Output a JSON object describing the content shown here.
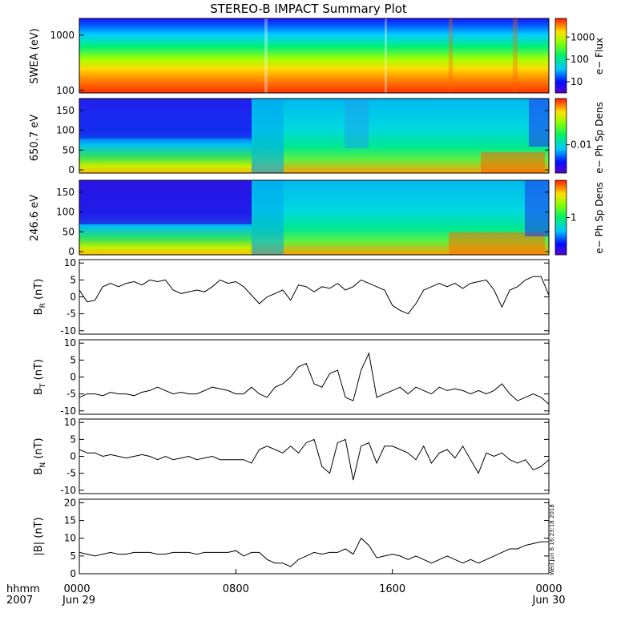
{
  "title": "STEREO-B IMPACT Summary Plot",
  "footer": {
    "hhmm": "hhmm",
    "year": "2007",
    "x_ticks": [
      "0000",
      "0800",
      "1600",
      "0000"
    ],
    "date_start": "Jun 29",
    "date_end": "Jun 30",
    "stamp": "Wed Jun  6 16:23:18 2018"
  },
  "chart_data": [
    {
      "type": "heatmap",
      "ylabel": "SWEA (eV)",
      "yscale": "log",
      "ylim": [
        90,
        2000
      ],
      "yticks": [
        "1000",
        "100"
      ],
      "colorbar": {
        "label": "e− Flux",
        "scale": "log",
        "ticks": [
          "1000",
          "100",
          "10"
        ]
      }
    },
    {
      "type": "heatmap",
      "ylabel": "650.7 eV",
      "ylim": [
        -8,
        180
      ],
      "yticks": [
        "150",
        "100",
        "50",
        "0"
      ],
      "colorbar": {
        "label": "e− Ph Sp Dens",
        "scale": "log",
        "ticks": [
          "0.01"
        ]
      }
    },
    {
      "type": "heatmap",
      "ylabel": "246.6 eV",
      "ylim": [
        -8,
        180
      ],
      "yticks": [
        "150",
        "100",
        "50",
        "0"
      ],
      "colorbar": {
        "label": "e− Ph Sp Dens",
        "scale": "log",
        "ticks": [
          "1"
        ]
      }
    },
    {
      "type": "line",
      "ylabel_main": "B",
      "ylabel_sub": "R",
      "ylabel_unit": "(nT)",
      "ylim": [
        -11,
        11
      ],
      "yticks": [
        10,
        5,
        0,
        -5,
        -10
      ],
      "x_hours": [
        0,
        0.4,
        0.8,
        1.2,
        1.6,
        2,
        2.4,
        2.8,
        3.2,
        3.6,
        4,
        4.4,
        4.8,
        5.2,
        5.6,
        6,
        6.4,
        6.8,
        7.2,
        7.6,
        8,
        8.4,
        8.8,
        9.2,
        9.6,
        10,
        10.4,
        10.8,
        11.2,
        11.6,
        12,
        12.4,
        12.8,
        13.2,
        13.6,
        14,
        14.4,
        14.8,
        15.2,
        15.6,
        16,
        16.4,
        16.8,
        17.2,
        17.6,
        18,
        18.4,
        18.8,
        19.2,
        19.6,
        20,
        20.4,
        20.8,
        21.2,
        21.6,
        22,
        22.4,
        22.8,
        23.2,
        23.6,
        24
      ],
      "y": [
        2,
        -1.5,
        -1,
        3,
        4,
        3,
        4,
        4.5,
        3.5,
        5,
        4.5,
        5,
        2,
        1,
        1.5,
        2,
        1.5,
        3,
        5,
        4,
        4.5,
        3,
        0.5,
        -2,
        0,
        1,
        2,
        -1,
        3.5,
        3,
        1.5,
        3,
        2.5,
        4,
        2,
        3,
        5,
        4,
        3,
        2,
        -2.5,
        -4,
        -5,
        -2,
        2,
        3,
        4,
        3,
        4,
        2.5,
        4,
        4.5,
        5,
        2,
        -3,
        2,
        3,
        5,
        6,
        6,
        0.5
      ]
    },
    {
      "type": "line",
      "ylabel_main": "B",
      "ylabel_sub": "T",
      "ylabel_unit": "(nT)",
      "ylim": [
        -11,
        11
      ],
      "yticks": [
        10,
        5,
        0,
        -5,
        -10
      ],
      "x_hours": [
        0,
        0.4,
        0.8,
        1.2,
        1.6,
        2,
        2.4,
        2.8,
        3.2,
        3.6,
        4,
        4.4,
        4.8,
        5.2,
        5.6,
        6,
        6.4,
        6.8,
        7.2,
        7.6,
        8,
        8.4,
        8.8,
        9.2,
        9.6,
        10,
        10.4,
        10.8,
        11.2,
        11.6,
        12,
        12.4,
        12.8,
        13.2,
        13.6,
        14,
        14.4,
        14.8,
        15.2,
        15.6,
        16,
        16.4,
        16.8,
        17.2,
        17.6,
        18,
        18.4,
        18.8,
        19.2,
        19.6,
        20,
        20.4,
        20.8,
        21.2,
        21.6,
        22,
        22.4,
        22.8,
        23.2,
        23.6,
        24
      ],
      "y": [
        -6,
        -5,
        -5,
        -5.5,
        -4.5,
        -5,
        -5,
        -5.5,
        -4.5,
        -4,
        -3,
        -4,
        -5,
        -4.5,
        -5,
        -5,
        -4,
        -3,
        -3.5,
        -4,
        -5,
        -5,
        -3,
        -5,
        -6,
        -3,
        -2,
        0,
        3,
        4,
        -2,
        -3,
        1,
        2,
        -6,
        -7,
        2,
        7,
        -6,
        -5,
        -4,
        -3,
        -5,
        -3,
        -4,
        -5,
        -3,
        -4,
        -3.5,
        -4,
        -5,
        -4,
        -5,
        -4,
        -2,
        -5,
        -7,
        -6,
        -5,
        -6,
        -8
      ]
    },
    {
      "type": "line",
      "ylabel_main": "B",
      "ylabel_sub": "N",
      "ylabel_unit": "(nT)",
      "ylim": [
        -11,
        11
      ],
      "yticks": [
        10,
        5,
        0,
        -5,
        -10
      ],
      "x_hours": [
        0,
        0.4,
        0.8,
        1.2,
        1.6,
        2,
        2.4,
        2.8,
        3.2,
        3.6,
        4,
        4.4,
        4.8,
        5.2,
        5.6,
        6,
        6.4,
        6.8,
        7.2,
        7.6,
        8,
        8.4,
        8.8,
        9.2,
        9.6,
        10,
        10.4,
        10.8,
        11.2,
        11.6,
        12,
        12.4,
        12.8,
        13.2,
        13.6,
        14,
        14.4,
        14.8,
        15.2,
        15.6,
        16,
        16.4,
        16.8,
        17.2,
        17.6,
        18,
        18.4,
        18.8,
        19.2,
        19.6,
        20,
        20.4,
        20.8,
        21.2,
        21.6,
        22,
        22.4,
        22.8,
        23.2,
        23.6,
        24
      ],
      "y": [
        2,
        1,
        1,
        0,
        0.5,
        0,
        -0.5,
        0,
        0.5,
        0,
        -1,
        0,
        -1,
        -0.5,
        0,
        -1,
        -0.5,
        0,
        -1,
        -1,
        -1,
        -1,
        -2,
        2,
        3,
        2,
        1,
        3,
        1,
        4,
        5,
        -3,
        -5,
        4,
        5,
        -7,
        3,
        4,
        -2,
        3,
        3,
        2,
        1,
        -1,
        3,
        -2,
        1,
        2,
        -0.5,
        3,
        -1,
        -5,
        1,
        0,
        1,
        -1,
        -2,
        -1,
        -4,
        -3,
        -1
      ]
    },
    {
      "type": "line",
      "ylabel_main": "|B|",
      "ylabel_sub": "",
      "ylabel_unit": "(nT)",
      "ylim": [
        0,
        21
      ],
      "yticks": [
        20,
        15,
        10,
        5,
        0
      ],
      "x_hours": [
        0,
        0.4,
        0.8,
        1.2,
        1.6,
        2,
        2.4,
        2.8,
        3.2,
        3.6,
        4,
        4.4,
        4.8,
        5.2,
        5.6,
        6,
        6.4,
        6.8,
        7.2,
        7.6,
        8,
        8.4,
        8.8,
        9.2,
        9.6,
        10,
        10.4,
        10.8,
        11.2,
        11.6,
        12,
        12.4,
        12.8,
        13.2,
        13.6,
        14,
        14.4,
        14.8,
        15.2,
        15.6,
        16,
        16.4,
        16.8,
        17.2,
        17.6,
        18,
        18.4,
        18.8,
        19.2,
        19.6,
        20,
        20.4,
        20.8,
        21.2,
        21.6,
        22,
        22.4,
        22.8,
        23.2,
        23.6,
        24
      ],
      "y": [
        6,
        5.5,
        5,
        5.5,
        6,
        5.5,
        5.5,
        6,
        6,
        6,
        5.5,
        5.5,
        6,
        6,
        6,
        5.5,
        6,
        6,
        6,
        6,
        6.5,
        5,
        6,
        6,
        4,
        3,
        3,
        2,
        4,
        5,
        6,
        5.5,
        6,
        6,
        7,
        5.5,
        10,
        8,
        4.5,
        5,
        5.5,
        5,
        4,
        5,
        4,
        3,
        4,
        5,
        4,
        3,
        4,
        3,
        4,
        5,
        6,
        7,
        7,
        8,
        8.5,
        9,
        9
      ]
    }
  ]
}
